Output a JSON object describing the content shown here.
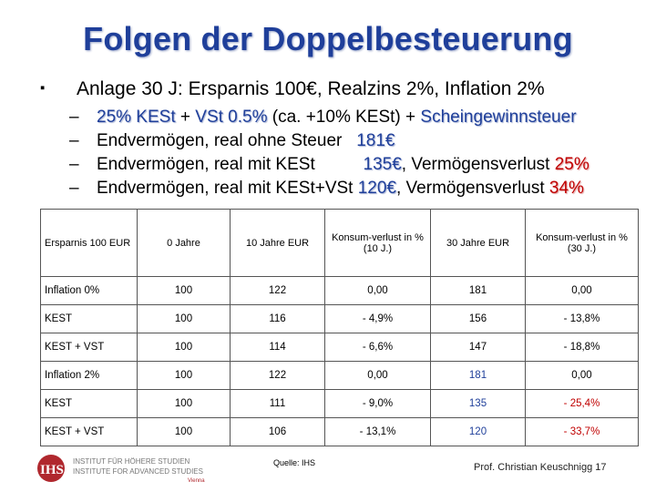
{
  "slide": {
    "title": "Folgen der Doppelbesteuerung",
    "main_bullet": {
      "prefix": "Anlage 30 J:",
      "rest": " Ersparnis 100€, Realzins 2%, Inflation 2%"
    },
    "sub_bullets": [
      {
        "dash": "–",
        "parts": [
          {
            "t": "25% KESt",
            "c": "hl"
          },
          {
            "t": " + ",
            "c": ""
          },
          {
            "t": "VSt 0.5%",
            "c": "hl"
          },
          {
            "t": " (ca. +10% KESt) + ",
            "c": ""
          },
          {
            "t": "Scheingewinnsteuer",
            "c": "hl"
          }
        ]
      },
      {
        "dash": "–",
        "parts": [
          {
            "t": "Endvermögen, real ohne Steuer   ",
            "c": ""
          },
          {
            "t": "181€",
            "c": "hl"
          }
        ]
      },
      {
        "dash": "–",
        "parts": [
          {
            "t": "Endvermögen, real mit KESt          ",
            "c": ""
          },
          {
            "t": "135€",
            "c": "hl"
          },
          {
            "t": ", Vermögensverlust ",
            "c": ""
          },
          {
            "t": "25%",
            "c": "red"
          }
        ]
      },
      {
        "dash": "–",
        "parts": [
          {
            "t": "Endvermögen, real mit KESt+VSt ",
            "c": ""
          },
          {
            "t": "120€",
            "c": "hl"
          },
          {
            "t": ", Vermögensverlust ",
            "c": ""
          },
          {
            "t": "34%",
            "c": "red"
          }
        ]
      }
    ]
  },
  "table": {
    "headers": [
      "Ersparnis 100 EUR",
      "0 Jahre",
      "10 Jahre EUR",
      "Konsum-verlust in % (10 J.)",
      "30 Jahre EUR",
      "Konsum-verlust in % (30 J.)"
    ],
    "rows": [
      {
        "cells": [
          "Inflation 0%",
          "100",
          "122",
          "0,00",
          "181",
          "0,00"
        ],
        "hi": false
      },
      {
        "cells": [
          "KEST",
          "100",
          "116",
          "- 4,9%",
          "156",
          "- 13,8%"
        ],
        "hi": false
      },
      {
        "cells": [
          "KEST + VST",
          "100",
          "114",
          "- 6,6%",
          "147",
          "- 18,8%"
        ],
        "hi": false
      },
      {
        "cells": [
          "Inflation 2%",
          "100",
          "122",
          "0,00",
          "181",
          "0,00"
        ],
        "hi": true
      },
      {
        "cells": [
          "KEST",
          "100",
          "111",
          "- 9,0%",
          "135",
          "- 25,4%"
        ],
        "hi": true
      },
      {
        "cells": [
          "KEST + VST",
          "100",
          "106",
          "- 13,1%",
          "120",
          "- 33,7%"
        ],
        "hi": true
      }
    ]
  },
  "footer": {
    "logo_line1": "INSTITUT FÜR HÖHERE STUDIEN",
    "logo_line2": "INSTITUTE FOR ADVANCED STUDIES",
    "logo_city": "Vienna",
    "source": "Quelle: IHS",
    "author_page": "Prof. Christian Keuschnigg 17"
  },
  "colors": {
    "title": "#1f3f9a",
    "accent_red": "#c00000",
    "logo_red": "#b0282e"
  }
}
